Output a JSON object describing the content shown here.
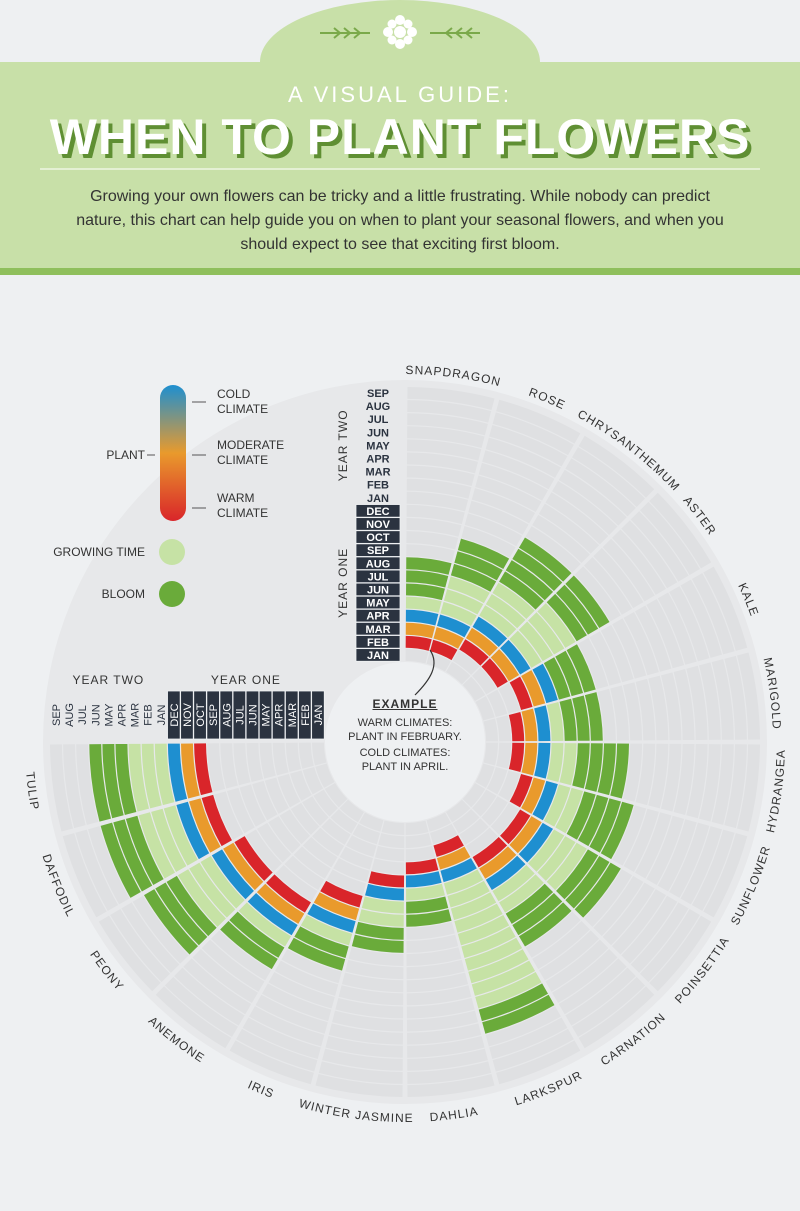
{
  "header": {
    "kicker": "A VISUAL GUIDE:",
    "title": "WHEN TO PLANT FLOWERS",
    "intro": "Growing your own flowers can be tricky and a little frustrating. While nobody can predict nature, this chart can help guide you on when to plant your seasonal flowers, and when you should expect to see that exciting first bloom."
  },
  "legend": {
    "cold": "COLD CLIMATE",
    "moderate": "MODERATE CLIMATE",
    "warm": "WARM CLIMATE",
    "plant": "PLANT",
    "growing": "GROWING TIME",
    "bloom": "BLOOM"
  },
  "months": {
    "year_one_label": "YEAR ONE",
    "year_two_label": "YEAR TWO",
    "year_one": [
      "JAN",
      "FEB",
      "MAR",
      "APR",
      "MAY",
      "JUN",
      "JUL",
      "AUG",
      "SEP",
      "OCT",
      "NOV",
      "DEC"
    ],
    "year_two": [
      "JAN",
      "FEB",
      "MAR",
      "APR",
      "MAY",
      "JUN",
      "JUL",
      "AUG",
      "SEP"
    ]
  },
  "example": {
    "title": "EXAMPLE",
    "warm": "WARM CLIMATES: PLANT IN FEBRUARY.",
    "cold": "COLD CLIMATES: PLANT IN APRIL."
  },
  "flowers": [
    {
      "name": "SNAPDRAGON",
      "plant": [
        1,
        3
      ],
      "bloom": [
        5,
        7
      ]
    },
    {
      "name": "ROSE",
      "plant": [
        1,
        3
      ],
      "bloom": [
        7,
        9
      ]
    },
    {
      "name": "CHRYSANTHEMUM",
      "plant": [
        2,
        4
      ],
      "bloom": [
        8,
        11
      ]
    },
    {
      "name": "ASTER",
      "plant": [
        2,
        4
      ],
      "bloom": [
        9,
        11
      ]
    },
    {
      "name": "KALE",
      "plant": [
        3,
        5
      ],
      "bloom": [
        6,
        8
      ]
    },
    {
      "name": "MARIGOLD",
      "plant": [
        2,
        4
      ],
      "bloom": [
        6,
        8
      ]
    },
    {
      "name": "HYDRANGEA",
      "plant": [
        2,
        4
      ],
      "bloom": [
        7,
        10
      ]
    },
    {
      "name": "SUNFLOWER",
      "plant": [
        3,
        5
      ],
      "bloom": [
        8,
        11
      ]
    },
    {
      "name": "POINSETTIA",
      "plant": [
        4,
        6
      ],
      "bloom": [
        10,
        12
      ]
    },
    {
      "name": "CARNATION",
      "plant": [
        4,
        6
      ],
      "bloom": [
        9,
        11
      ]
    },
    {
      "name": "LARKSPUR",
      "plant": [
        2,
        4
      ],
      "bloom": [
        15,
        16
      ]
    },
    {
      "name": "DAHLIA",
      "plant": [
        3,
        4
      ],
      "bloom": [
        6,
        7
      ]
    },
    {
      "name": "WINTER JASMINE",
      "plant": [
        4,
        5
      ],
      "bloom": [
        8,
        9
      ]
    },
    {
      "name": "IRIS",
      "plant": [
        6,
        8
      ],
      "bloom": [
        10,
        11
      ]
    },
    {
      "name": "ANEMONE",
      "plant": [
        8,
        10
      ],
      "bloom": [
        12,
        13
      ]
    },
    {
      "name": "PEONY",
      "plant": [
        8,
        10
      ],
      "bloom": [
        14,
        16
      ]
    },
    {
      "name": "DAFFODIL",
      "plant": [
        9,
        11
      ],
      "bloom": [
        15,
        17
      ]
    },
    {
      "name": "TULIP",
      "plant": [
        9,
        11
      ],
      "bloom": [
        15,
        17
      ]
    }
  ]
}
